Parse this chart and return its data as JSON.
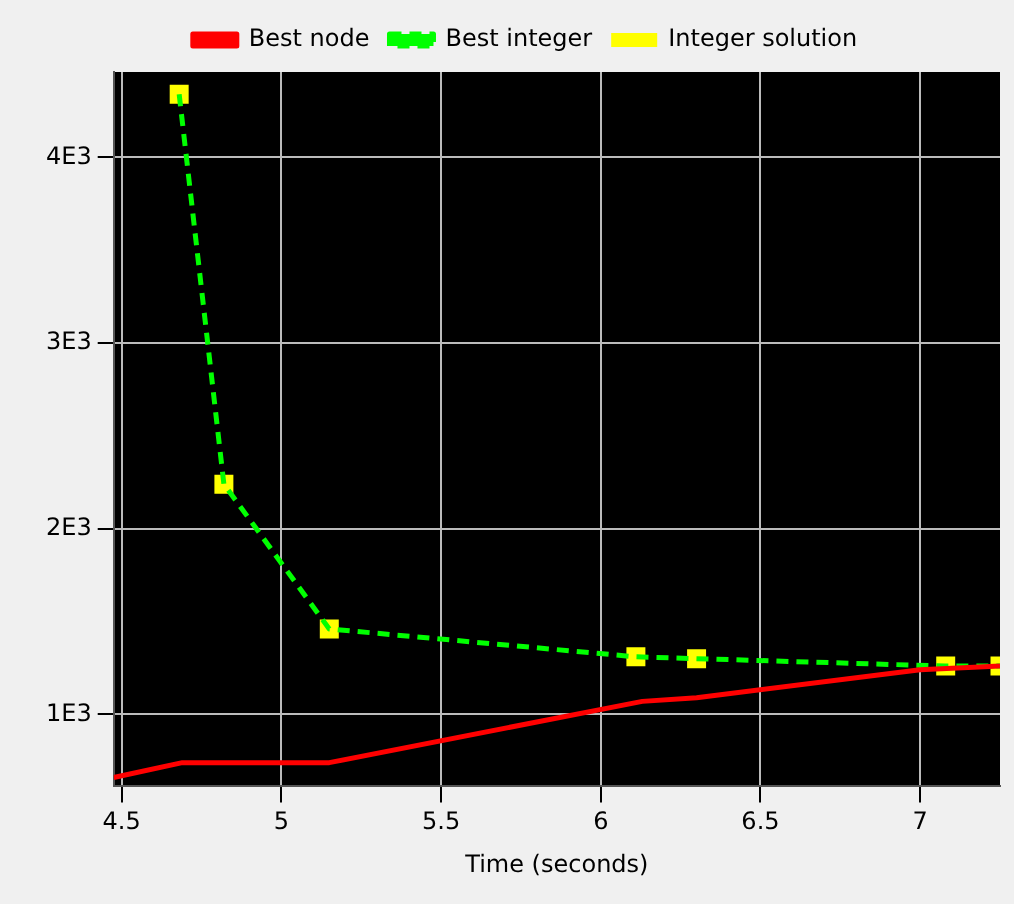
{
  "chart_data": {
    "type": "line",
    "xlabel": "Time (seconds)",
    "xlim": [
      4.475,
      7.25
    ],
    "xticks": [
      4.5,
      5,
      5.5,
      6,
      6.5,
      7
    ],
    "ylim": [
      612,
      4460
    ],
    "yticks": [
      {
        "value": 1000,
        "label": "1E3"
      },
      {
        "value": 2000,
        "label": "2E3"
      },
      {
        "value": 3000,
        "label": "3E3"
      },
      {
        "value": 4000,
        "label": "4E3"
      }
    ],
    "grid": true,
    "legend": "top",
    "series": [
      {
        "name": "Best node",
        "color": "#ff0000",
        "line_style": "solid",
        "marker": "none",
        "x": [
          4.475,
          4.69,
          5.15,
          6.13,
          6.3,
          7.0,
          7.25
        ],
        "values": [
          660,
          740,
          740,
          1070,
          1090,
          1240,
          1260
        ]
      },
      {
        "name": "Best integer",
        "color": "#00ff00",
        "line_style": "dashed",
        "marker": "none",
        "x": [
          4.68,
          4.82,
          5.15,
          6.11,
          6.3,
          7.08,
          7.25
        ],
        "values": [
          4340,
          2240,
          1460,
          1310,
          1300,
          1260,
          1260
        ]
      },
      {
        "name": "Integer solution",
        "type": "scatter",
        "color": "#ffff00",
        "marker": "square",
        "x": [
          4.68,
          4.82,
          5.15,
          6.11,
          6.3,
          7.08,
          7.25
        ],
        "values": [
          4340,
          2240,
          1460,
          1310,
          1300,
          1260,
          1260
        ]
      }
    ]
  }
}
